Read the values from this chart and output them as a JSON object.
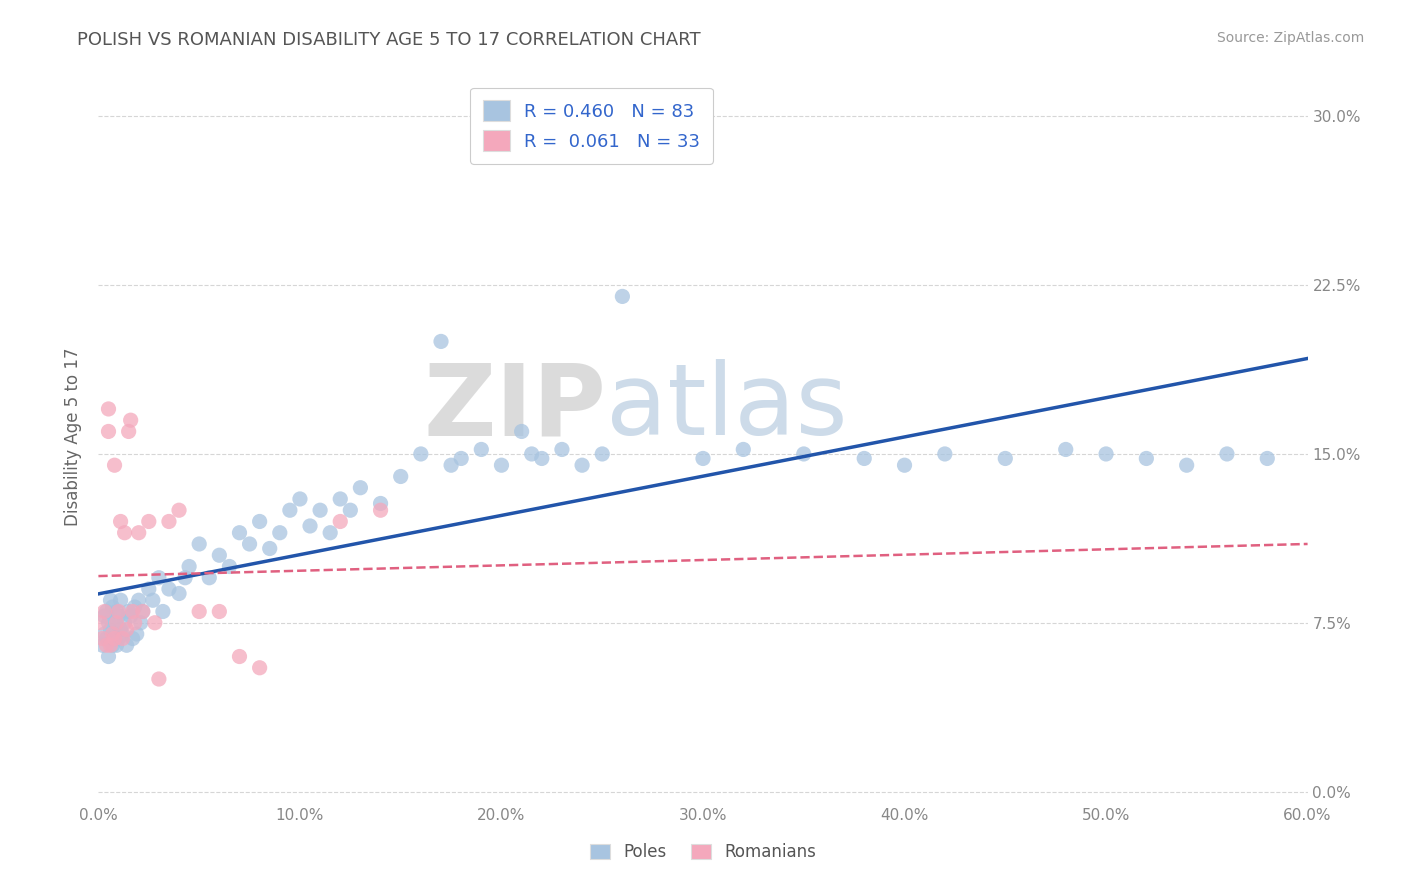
{
  "title": "POLISH VS ROMANIAN DISABILITY AGE 5 TO 17 CORRELATION CHART",
  "source": "Source: ZipAtlas.com",
  "ylabel": "Disability Age 5 to 17",
  "xlim": [
    0.0,
    0.6
  ],
  "ylim": [
    -0.005,
    0.32
  ],
  "xticks": [
    0.0,
    0.1,
    0.2,
    0.3,
    0.4,
    0.5,
    0.6
  ],
  "xticklabels": [
    "0.0%",
    "10.0%",
    "20.0%",
    "30.0%",
    "40.0%",
    "50.0%",
    "60.0%"
  ],
  "yticks": [
    0.0,
    0.075,
    0.15,
    0.225,
    0.3
  ],
  "yticklabels": [
    "0.0%",
    "7.5%",
    "15.0%",
    "22.5%",
    "30.0%"
  ],
  "poles_color": "#a8c4e0",
  "romanians_color": "#f4a8bc",
  "poles_line_color": "#2255aa",
  "romanians_line_color": "#e06080",
  "legend_text_color": "#3366cc",
  "R_poles": "0.460",
  "N_poles": 83,
  "R_romanians": "0.061",
  "N_romanians": 33,
  "background_color": "#ffffff",
  "grid_color": "#cccccc",
  "watermark_zip": "ZIP",
  "watermark_atlas": "atlas",
  "tick_color": "#888888",
  "poles_x": [
    0.002,
    0.003,
    0.003,
    0.004,
    0.004,
    0.005,
    0.005,
    0.006,
    0.006,
    0.007,
    0.007,
    0.008,
    0.008,
    0.009,
    0.009,
    0.01,
    0.01,
    0.011,
    0.011,
    0.012,
    0.013,
    0.014,
    0.015,
    0.016,
    0.017,
    0.018,
    0.019,
    0.02,
    0.021,
    0.022,
    0.025,
    0.027,
    0.03,
    0.032,
    0.035,
    0.04,
    0.043,
    0.045,
    0.05,
    0.055,
    0.06,
    0.065,
    0.07,
    0.075,
    0.08,
    0.085,
    0.09,
    0.095,
    0.1,
    0.105,
    0.11,
    0.115,
    0.12,
    0.125,
    0.13,
    0.14,
    0.15,
    0.16,
    0.17,
    0.175,
    0.18,
    0.19,
    0.2,
    0.21,
    0.215,
    0.22,
    0.23,
    0.24,
    0.25,
    0.26,
    0.3,
    0.32,
    0.35,
    0.38,
    0.4,
    0.42,
    0.45,
    0.48,
    0.5,
    0.52,
    0.54,
    0.56,
    0.58
  ],
  "poles_y": [
    0.065,
    0.07,
    0.078,
    0.068,
    0.08,
    0.06,
    0.075,
    0.072,
    0.085,
    0.065,
    0.082,
    0.07,
    0.075,
    0.065,
    0.08,
    0.068,
    0.078,
    0.072,
    0.085,
    0.07,
    0.075,
    0.065,
    0.08,
    0.078,
    0.068,
    0.082,
    0.07,
    0.085,
    0.075,
    0.08,
    0.09,
    0.085,
    0.095,
    0.08,
    0.09,
    0.088,
    0.095,
    0.1,
    0.11,
    0.095,
    0.105,
    0.1,
    0.115,
    0.11,
    0.12,
    0.108,
    0.115,
    0.125,
    0.13,
    0.118,
    0.125,
    0.115,
    0.13,
    0.125,
    0.135,
    0.128,
    0.14,
    0.15,
    0.2,
    0.145,
    0.148,
    0.152,
    0.145,
    0.16,
    0.15,
    0.148,
    0.152,
    0.145,
    0.15,
    0.22,
    0.148,
    0.152,
    0.15,
    0.148,
    0.145,
    0.15,
    0.148,
    0.152,
    0.15,
    0.148,
    0.145,
    0.15,
    0.148
  ],
  "romanians_x": [
    0.001,
    0.002,
    0.003,
    0.004,
    0.005,
    0.005,
    0.006,
    0.007,
    0.008,
    0.008,
    0.009,
    0.01,
    0.011,
    0.012,
    0.013,
    0.014,
    0.015,
    0.016,
    0.017,
    0.018,
    0.02,
    0.022,
    0.025,
    0.028,
    0.03,
    0.035,
    0.04,
    0.05,
    0.06,
    0.07,
    0.08,
    0.12,
    0.14
  ],
  "romanians_y": [
    0.075,
    0.068,
    0.08,
    0.065,
    0.16,
    0.17,
    0.065,
    0.07,
    0.068,
    0.145,
    0.075,
    0.08,
    0.12,
    0.068,
    0.115,
    0.072,
    0.16,
    0.165,
    0.08,
    0.075,
    0.115,
    0.08,
    0.12,
    0.075,
    0.05,
    0.12,
    0.125,
    0.08,
    0.08,
    0.06,
    0.055,
    0.12,
    0.125
  ]
}
